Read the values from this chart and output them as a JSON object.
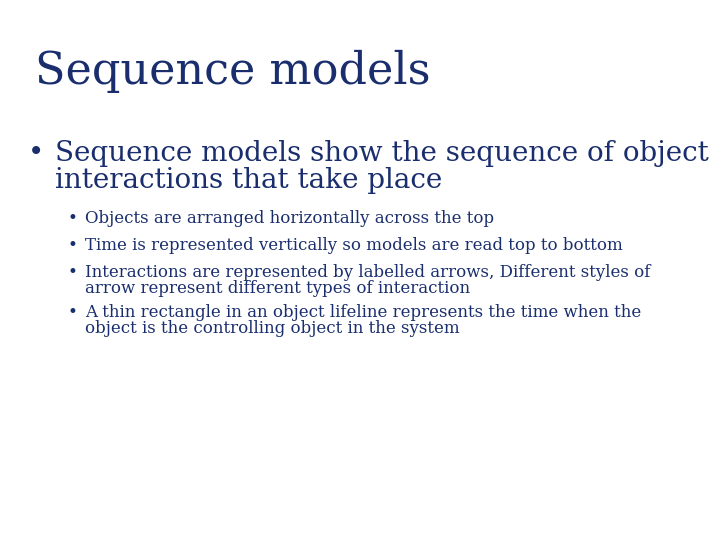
{
  "background_color": "#ffffff",
  "title": "Sequence models",
  "title_color": "#1a2e6e",
  "title_fontsize": 32,
  "bullet1_text_line1": "Sequence models show the sequence of object",
  "bullet1_text_line2": "interactions that take place",
  "bullet1_color": "#1a2e6e",
  "bullet1_fontsize": 20,
  "sub_bullets": [
    "Objects are arranged horizontally across the top",
    "Time is represented vertically so models are read top to bottom",
    "Interactions are represented by labelled arrows, Different styles of\narrow represent different types of interaction",
    "A thin rectangle in an object lifeline represents the time when the\nobject is the controlling object in the system"
  ],
  "sub_bullet_color": "#1a2e6e",
  "sub_bullet_fontsize": 12
}
